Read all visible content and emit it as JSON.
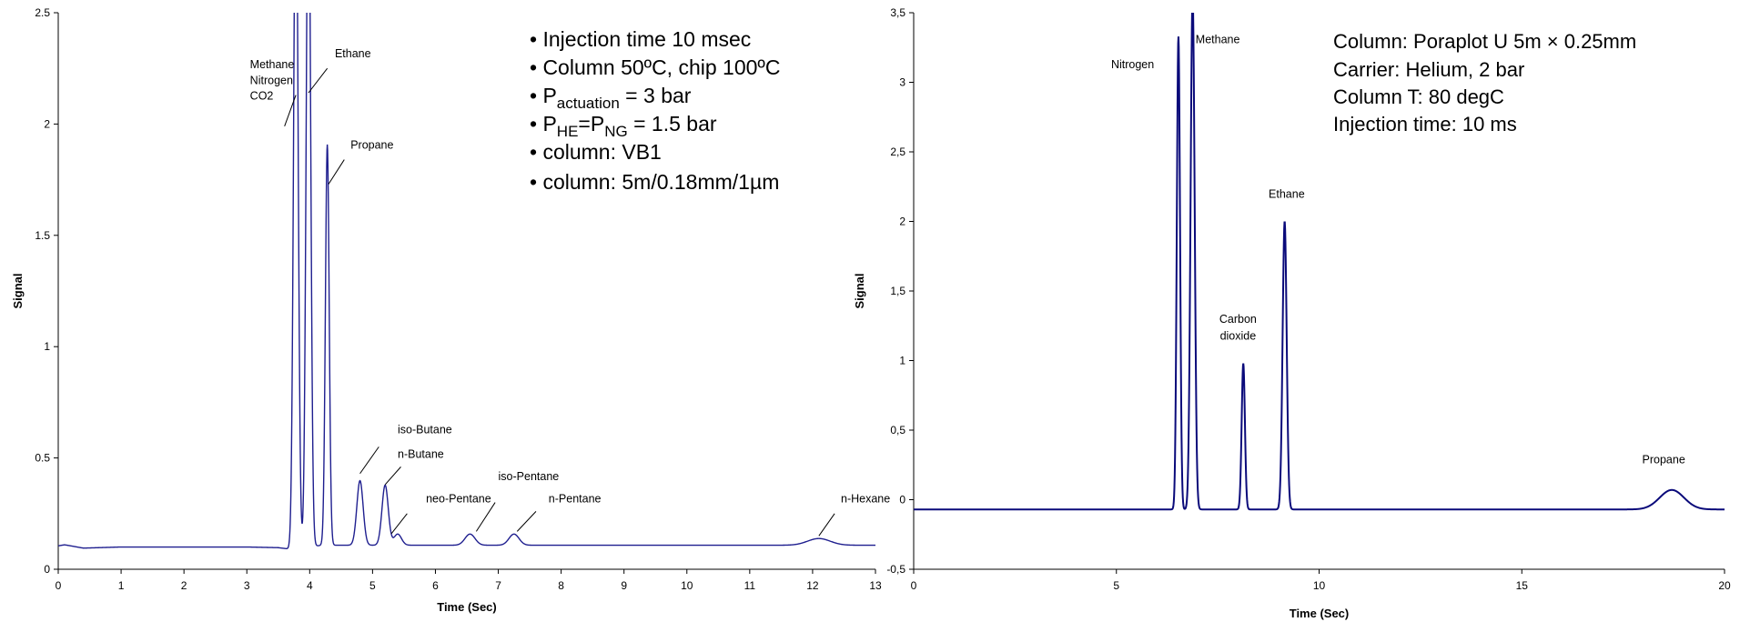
{
  "chart_data": [
    {
      "type": "line",
      "xlabel": "Time (Sec)",
      "ylabel": "Signal",
      "xlim": [
        0,
        13
      ],
      "ylim": [
        0,
        2.5
      ],
      "xticks": [
        "0",
        "1",
        "2",
        "3",
        "4",
        "5",
        "6",
        "7",
        "8",
        "9",
        "10",
        "11",
        "12",
        "13"
      ],
      "yticks": [
        "0",
        "0.5",
        "1",
        "1.5",
        "2",
        "2.5"
      ],
      "grid": false,
      "color": "#1f1f8f",
      "baseline": [
        [
          0,
          0.105
        ],
        [
          0.1,
          0.11
        ],
        [
          0.4,
          0.095
        ],
        [
          1.0,
          0.1
        ],
        [
          2.0,
          0.1
        ],
        [
          3.0,
          0.1
        ],
        [
          3.5,
          0.097
        ],
        [
          3.7,
          0.09
        ]
      ],
      "peaks": [
        {
          "center": 3.78,
          "height": 3.2,
          "width": 0.035
        },
        {
          "center": 3.98,
          "height": 3.2,
          "width": 0.035
        },
        {
          "center": 4.28,
          "height": 1.8,
          "width": 0.03
        },
        {
          "center": 4.8,
          "height": 0.29,
          "width": 0.05
        },
        {
          "center": 5.2,
          "height": 0.27,
          "width": 0.05
        },
        {
          "center": 5.4,
          "height": 0.05,
          "width": 0.06
        },
        {
          "center": 6.55,
          "height": 0.05,
          "width": 0.08
        },
        {
          "center": 7.25,
          "height": 0.05,
          "width": 0.08
        },
        {
          "center": 12.1,
          "height": 0.03,
          "width": 0.18
        }
      ],
      "baseline_after": 0.108,
      "peak_labels": [
        {
          "text": "Methane",
          "x": 3.05,
          "y": 2.25
        },
        {
          "text": "Nitrogen",
          "x": 3.05,
          "y": 2.18
        },
        {
          "text": "CO2",
          "x": 3.05,
          "y": 2.11
        },
        {
          "text": "Ethane",
          "x": 4.4,
          "y": 2.3
        },
        {
          "text": "Propane",
          "x": 4.65,
          "y": 1.89
        },
        {
          "text": "iso-Butane",
          "x": 5.4,
          "y": 0.61
        },
        {
          "text": "n-Butane",
          "x": 5.4,
          "y": 0.5
        },
        {
          "text": "neo-Pentane",
          "x": 5.85,
          "y": 0.3
        },
        {
          "text": "iso-Pentane",
          "x": 7.0,
          "y": 0.4
        },
        {
          "text": "n-Pentane",
          "x": 7.8,
          "y": 0.3
        },
        {
          "text": "n-Hexane",
          "x": 12.45,
          "y": 0.3
        }
      ],
      "pointer_lines": [
        [
          3.6,
          1.99,
          3.78,
          2.13
        ],
        [
          3.98,
          2.14,
          4.28,
          2.25
        ],
        [
          4.3,
          1.73,
          4.55,
          1.84
        ],
        [
          4.8,
          0.43,
          5.1,
          0.55
        ],
        [
          5.2,
          0.38,
          5.45,
          0.46
        ],
        [
          5.3,
          0.16,
          5.55,
          0.25
        ],
        [
          6.65,
          0.17,
          6.95,
          0.3
        ],
        [
          7.3,
          0.17,
          7.6,
          0.26
        ],
        [
          12.1,
          0.15,
          12.35,
          0.25
        ]
      ],
      "info": {
        "line1": "• Injection time 10 msec",
        "line2": "• Column 50ºC, chip 100ºC",
        "line3_pre": "• P",
        "line3_sub": "actuation",
        "line3_post": "  = 3 bar",
        "line4_pre": "• P",
        "line4_sub1": "HE",
        "line4_mid": "=P",
        "line4_sub2": "NG",
        "line4_post": " = 1.5 bar",
        "line5": "• column: VB1",
        "line6": "• column: 5m/0.18mm/1µm"
      }
    },
    {
      "type": "line",
      "xlabel": "Time (Sec)",
      "ylabel": "Signal",
      "xlim": [
        0,
        20
      ],
      "ylim": [
        -0.5,
        3.5
      ],
      "xticks": [
        "0",
        "5",
        "10",
        "15",
        "20"
      ],
      "yticks": [
        "-0,5",
        "0",
        "0,5",
        "1",
        "1,5",
        "2",
        "2,5",
        "3",
        "3,5"
      ],
      "grid": false,
      "color": "#0a0a7a",
      "baseline": -0.07,
      "peaks": [
        {
          "center": 6.53,
          "height": 3.4,
          "width": 0.04
        },
        {
          "center": 6.88,
          "height": 3.7,
          "width": 0.05
        },
        {
          "center": 8.13,
          "height": 1.05,
          "width": 0.04
        },
        {
          "center": 9.15,
          "height": 2.07,
          "width": 0.05
        },
        {
          "center": 18.7,
          "height": 0.14,
          "width": 0.3
        }
      ],
      "peak_labels": [
        {
          "text": "Nitrogen",
          "x": 5.4,
          "y": 3.1
        },
        {
          "text": "Methane",
          "x": 7.5,
          "y": 3.28
        },
        {
          "text": "Carbon",
          "x": 8.0,
          "y": 1.27
        },
        {
          "text": "dioxide",
          "x": 8.0,
          "y": 1.15
        },
        {
          "text": "Ethane",
          "x": 9.2,
          "y": 2.17
        },
        {
          "text": "Propane",
          "x": 18.5,
          "y": 0.26
        }
      ],
      "info": {
        "line1": "Column: Poraplot U 5m × 0.25mm",
        "line2": "Carrier: Helium, 2 bar",
        "line3": "Column T: 80 degC",
        "line4": "Injection time: 10 ms"
      }
    }
  ]
}
